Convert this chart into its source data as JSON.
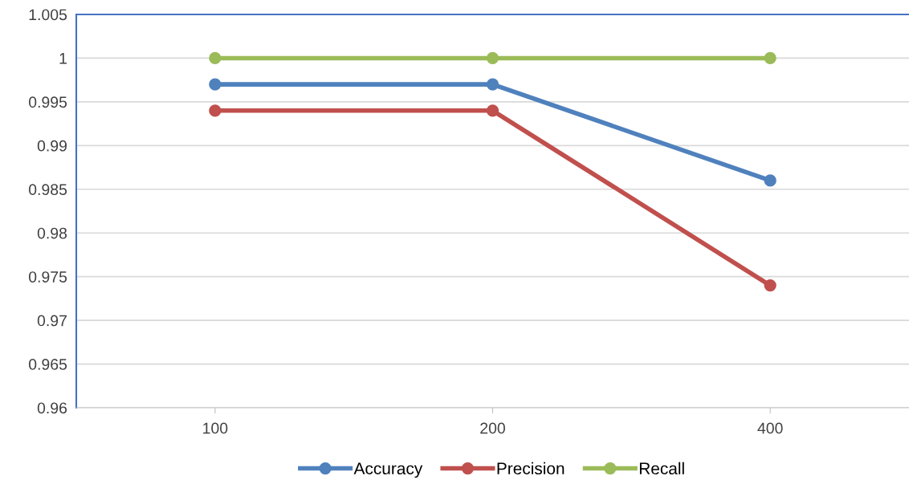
{
  "chart_data": {
    "type": "line",
    "categories": [
      "100",
      "200",
      "400"
    ],
    "series": [
      {
        "name": "Accuracy",
        "color": "#4f81bd",
        "values": [
          0.997,
          0.997,
          0.986
        ]
      },
      {
        "name": "Precision",
        "color": "#c0504d",
        "values": [
          0.994,
          0.994,
          0.974
        ]
      },
      {
        "name": "Recall",
        "color": "#9bbb59",
        "values": [
          1,
          1,
          1
        ]
      }
    ],
    "ylim": [
      0.96,
      1.005
    ],
    "yticks": [
      0.96,
      0.965,
      0.97,
      0.975,
      0.98,
      0.985,
      0.99,
      0.995,
      1,
      1.005
    ],
    "grid": "y",
    "legend": "bottom",
    "marker": "circle",
    "line_style": "solid"
  }
}
